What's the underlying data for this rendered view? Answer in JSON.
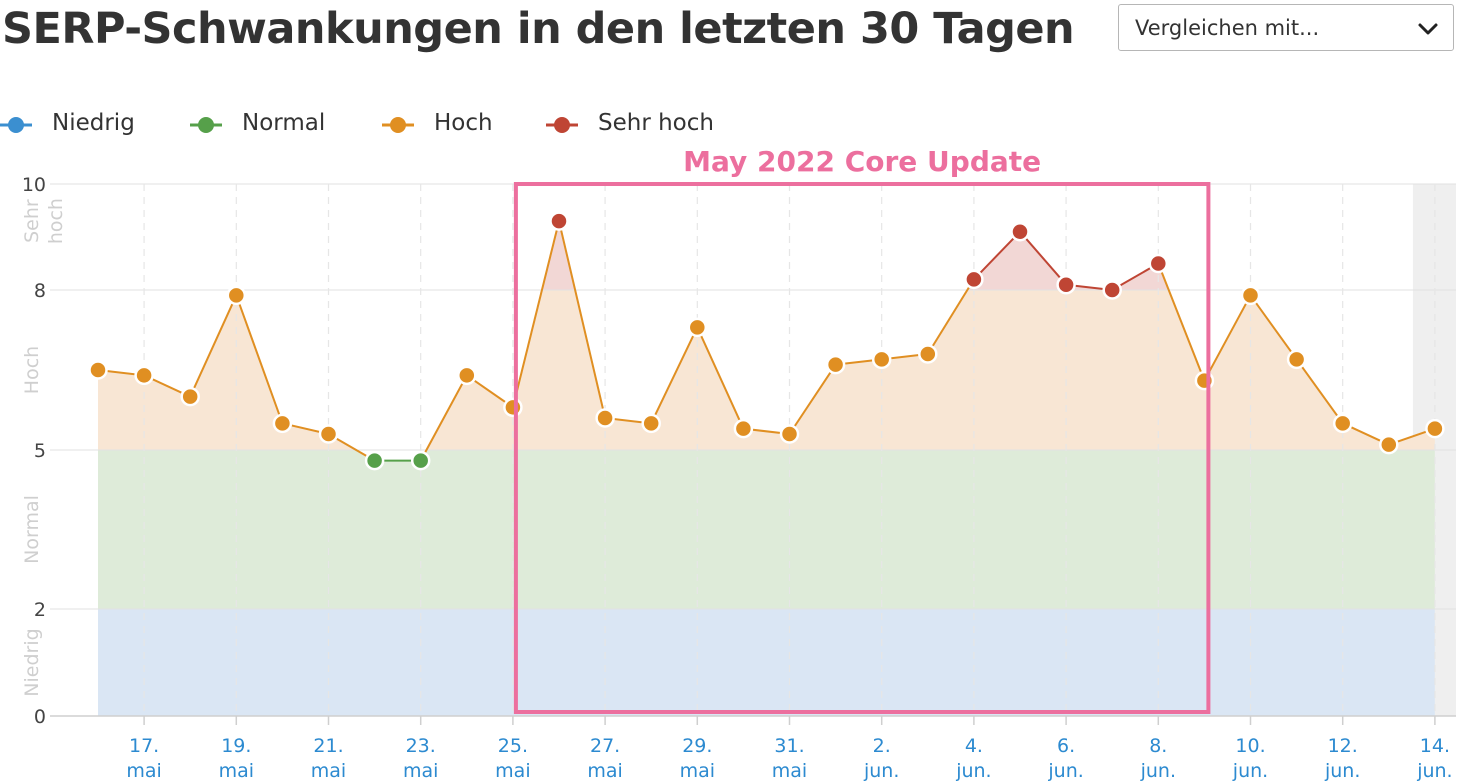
{
  "header": {
    "title": "SERP-Schwankungen in den letzten 30 Tagen"
  },
  "compare": {
    "label": "Vergleichen mit...",
    "icon": "chevron-down-icon"
  },
  "legend": [
    {
      "label": "Niedrig",
      "color": "#3b8fd0"
    },
    {
      "label": "Normal",
      "color": "#56a04a"
    },
    {
      "label": "Hoch",
      "color": "#e08f22"
    },
    {
      "label": "Sehr hoch",
      "color": "#bf4534"
    }
  ],
  "chart_data": {
    "type": "line",
    "annotation": "May 2022 Core Update",
    "annotation_color": "#ec6f9e",
    "annotation_range": [
      "25. mai",
      "9. jun."
    ],
    "y_ticks": [
      0,
      2,
      5,
      8,
      10
    ],
    "ylim": [
      0,
      10
    ],
    "bands": [
      {
        "label": "Niedrig",
        "from": 0,
        "to": 2,
        "color": "#dae6f4"
      },
      {
        "label": "Normal",
        "from": 2,
        "to": 5,
        "color": "#deebd9"
      },
      {
        "label": "Hoch",
        "from": 5,
        "to": 8,
        "color": "#f8e6d4"
      },
      {
        "label": "Sehr hoch",
        "from": 8,
        "to": 10,
        "color": "#f2d7d5"
      }
    ],
    "x_tick_labels": [
      [
        "17.",
        "mai"
      ],
      [
        "19.",
        "mai"
      ],
      [
        "21.",
        "mai"
      ],
      [
        "23.",
        "mai"
      ],
      [
        "25.",
        "mai"
      ],
      [
        "27.",
        "mai"
      ],
      [
        "29.",
        "mai"
      ],
      [
        "31.",
        "mai"
      ],
      [
        "2.",
        "jun."
      ],
      [
        "4.",
        "jun."
      ],
      [
        "6.",
        "jun."
      ],
      [
        "8.",
        "jun."
      ],
      [
        "10.",
        "jun."
      ],
      [
        "12.",
        "jun."
      ],
      [
        "14.",
        "jun."
      ]
    ],
    "x": [
      "16. mai",
      "17. mai",
      "18. mai",
      "19. mai",
      "20. mai",
      "21. mai",
      "22. mai",
      "23. mai",
      "24. mai",
      "25. mai",
      "26. mai",
      "27. mai",
      "28. mai",
      "29. mai",
      "30. mai",
      "31. mai",
      "1. jun.",
      "2. jun.",
      "3. jun.",
      "4. jun.",
      "5. jun.",
      "6. jun.",
      "7. jun.",
      "8. jun.",
      "9. jun.",
      "10. jun.",
      "11. jun.",
      "12. jun.",
      "13. jun.",
      "14. jun."
    ],
    "values": [
      6.5,
      6.4,
      6.0,
      7.9,
      5.5,
      5.3,
      4.8,
      4.8,
      6.4,
      5.8,
      9.3,
      5.6,
      5.5,
      7.3,
      5.4,
      5.3,
      6.6,
      6.7,
      6.8,
      8.2,
      9.1,
      8.1,
      8.0,
      8.5,
      6.3,
      7.9,
      6.7,
      5.5,
      5.1,
      5.4
    ]
  }
}
